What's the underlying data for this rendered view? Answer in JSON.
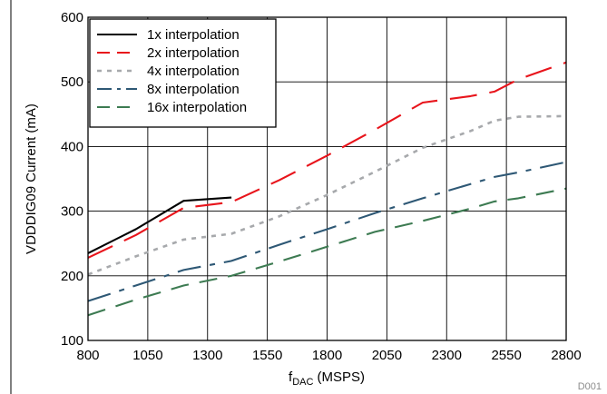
{
  "chart_data": {
    "type": "line",
    "xlabel_main": "f",
    "xlabel_sub": "DAC",
    "xlabel_unit": "(MSPS)",
    "ylabel": "VDDDIG09 Current (mA)",
    "xlim": [
      800,
      2800
    ],
    "ylim": [
      100,
      600
    ],
    "xticks": [
      800,
      1050,
      1300,
      1550,
      1800,
      2050,
      2300,
      2550,
      2800
    ],
    "yticks": [
      100,
      200,
      300,
      400,
      500,
      600
    ],
    "grid": true,
    "legend_position": "top-left",
    "figure_code": "D001",
    "series": [
      {
        "name": "1x interpolation",
        "color": "#000000",
        "dash": "solid",
        "x": [
          800,
          1000,
          1200,
          1400
        ],
        "y": [
          235,
          272,
          316,
          321
        ]
      },
      {
        "name": "2x interpolation",
        "color": "#e8141b",
        "dash": "long-dash",
        "x": [
          800,
          1000,
          1200,
          1400,
          1600,
          1800,
          2000,
          2200,
          2400,
          2500,
          2600,
          2800
        ],
        "y": [
          228,
          263,
          305,
          314,
          348,
          386,
          426,
          468,
          478,
          485,
          504,
          530
        ]
      },
      {
        "name": "4x interpolation",
        "color": "#a7a9ac",
        "dash": "dot",
        "x": [
          800,
          1000,
          1200,
          1400,
          1600,
          1800,
          2000,
          2200,
          2400,
          2500,
          2600,
          2800
        ],
        "y": [
          202,
          230,
          256,
          265,
          292,
          325,
          361,
          398,
          424,
          440,
          446,
          447
        ]
      },
      {
        "name": "8x interpolation",
        "color": "#2e5875",
        "dash": "dash-dot",
        "x": [
          800,
          1000,
          1200,
          1400,
          1600,
          1800,
          2000,
          2200,
          2400,
          2500,
          2600,
          2800
        ],
        "y": [
          161,
          185,
          209,
          223,
          248,
          272,
          297,
          320,
          342,
          353,
          360,
          376
        ]
      },
      {
        "name": "16x interpolation",
        "color": "#3d7b52",
        "dash": "dash",
        "x": [
          800,
          1000,
          1200,
          1400,
          1600,
          1800,
          2000,
          2200,
          2400,
          2500,
          2600,
          2800
        ],
        "y": [
          139,
          163,
          185,
          200,
          222,
          245,
          268,
          285,
          304,
          315,
          320,
          335
        ]
      }
    ]
  }
}
